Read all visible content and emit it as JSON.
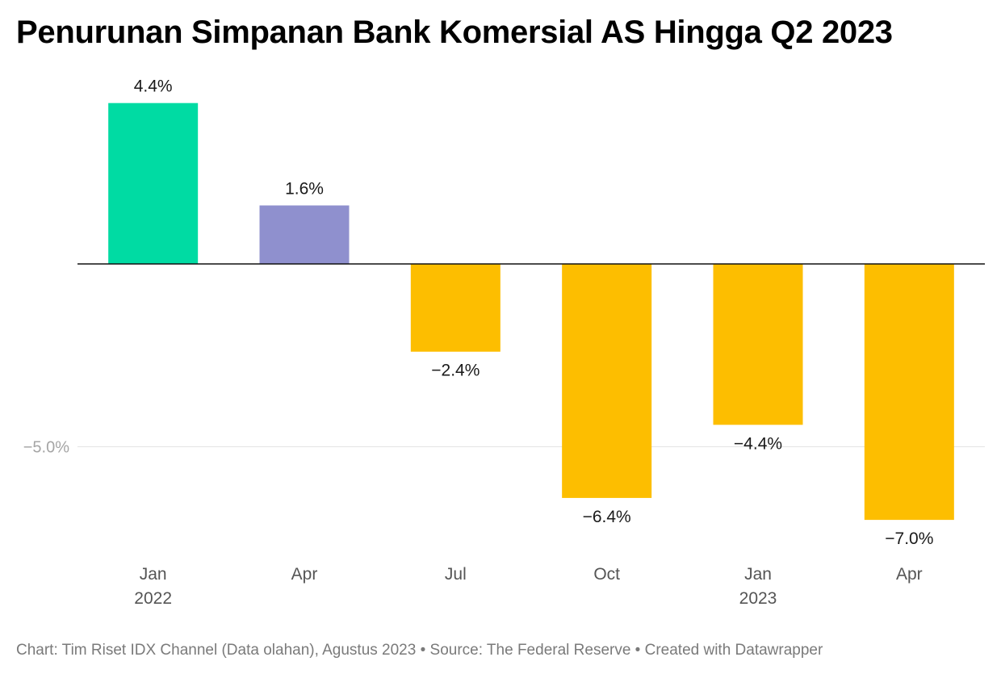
{
  "title": "Penurunan Simpanan Bank Komersial AS Hingga Q2 2023",
  "footer": "Chart: Tim Riset IDX Channel (Data olahan), Agustus 2023 • Source: The Federal Reserve • Created with Datawrapper",
  "chart_data": {
    "type": "bar",
    "title": "Penurunan Simpanan Bank Komersial AS Hingga Q2 2023",
    "categories": [
      "Jan",
      "Apr",
      "Jul",
      "Oct",
      "Jan",
      "Apr"
    ],
    "category_years": [
      "2022",
      "",
      "",
      "",
      "2023",
      ""
    ],
    "values": [
      4.4,
      1.6,
      -2.4,
      -6.4,
      -4.4,
      -7.0
    ],
    "value_labels": [
      "4.4%",
      "1.6%",
      "−2.4%",
      "−6.4%",
      "−4.4%",
      "−7.0%"
    ],
    "colors": [
      "#00DBA3",
      "#8F90CE",
      "#FDBE00",
      "#FDBE00",
      "#FDBE00",
      "#FDBE00"
    ],
    "y_ticks": [
      {
        "value": -5.0,
        "label": "−5.0%"
      }
    ],
    "ylim": [
      -7.5,
      4.8
    ],
    "xlabel": "",
    "ylabel": "",
    "grid": true,
    "zero_line": true
  }
}
